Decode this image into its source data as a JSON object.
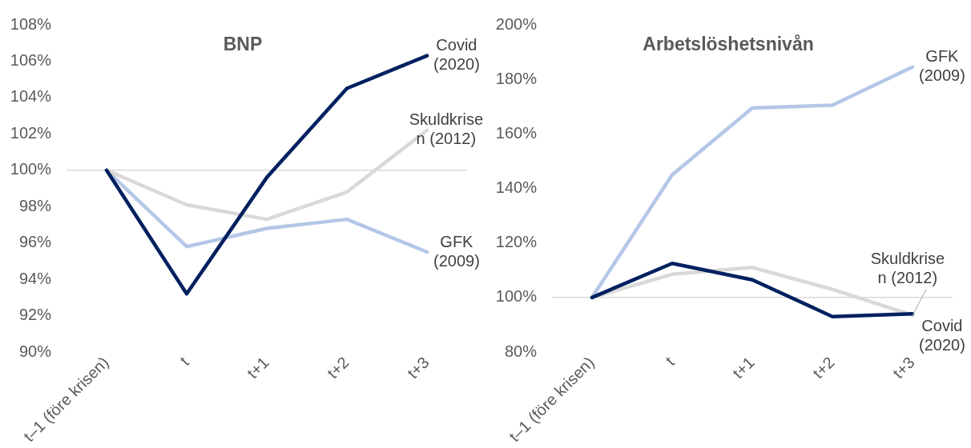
{
  "chart_data": [
    {
      "type": "line",
      "title": "BNP",
      "categories": [
        "t–1 (före krisen)",
        "t",
        "t+1",
        "t+2",
        "t+3"
      ],
      "series": [
        {
          "name": "GFK (2009)",
          "color": "#b4c7e7",
          "values": [
            100,
            95.8,
            96.8,
            97.3,
            95.5
          ]
        },
        {
          "name": "Skuldkrisen (2012)",
          "color": "#d9d9d9",
          "values": [
            100,
            98.1,
            97.3,
            98.8,
            102.2
          ]
        },
        {
          "name": "Covid (2020)",
          "color": "#002060",
          "values": [
            100,
            93.2,
            99.6,
            104.5,
            106.3
          ]
        }
      ],
      "ylim": [
        90,
        108
      ],
      "yticks": [
        {
          "value": 90,
          "label": "90%"
        },
        {
          "value": 92,
          "label": "92%"
        },
        {
          "value": 94,
          "label": "94%"
        },
        {
          "value": 96,
          "label": "96%"
        },
        {
          "value": 98,
          "label": "98%"
        },
        {
          "value": 100,
          "label": "100%"
        },
        {
          "value": 102,
          "label": "102%"
        },
        {
          "value": 104,
          "label": "104%"
        },
        {
          "value": 106,
          "label": "106%"
        },
        {
          "value": 108,
          "label": "108%"
        }
      ],
      "ref_lines": [
        {
          "axis": "y",
          "value": 100,
          "color": "#d9d9d9"
        }
      ],
      "grid": false,
      "legend": false,
      "marker": "none",
      "line_style": "solid"
    },
    {
      "type": "line",
      "title": "Arbetslöshetsnivån",
      "categories": [
        "t–1 (före krisen)",
        "t",
        "t+1",
        "t+2",
        "t+3"
      ],
      "series": [
        {
          "name": "GFK (2009)",
          "color": "#b4c7e7",
          "values": [
            100,
            145,
            169.5,
            170.5,
            184.5
          ]
        },
        {
          "name": "Skuldkrisen (2012)",
          "color": "#d9d9d9",
          "values": [
            100,
            108.5,
            111,
            103,
            93.5
          ]
        },
        {
          "name": "Covid (2020)",
          "color": "#002060",
          "values": [
            100,
            112.5,
            106.5,
            93,
            94
          ]
        }
      ],
      "ylim": [
        80,
        200
      ],
      "yticks": [
        {
          "value": 80,
          "label": "80%"
        },
        {
          "value": 100,
          "label": "100%"
        },
        {
          "value": 120,
          "label": "120%"
        },
        {
          "value": 140,
          "label": "140%"
        },
        {
          "value": 160,
          "label": "160%"
        },
        {
          "value": 180,
          "label": "180%"
        },
        {
          "value": 200,
          "label": "200%"
        }
      ],
      "ref_lines": [
        {
          "axis": "y",
          "value": 100,
          "color": "#d9d9d9"
        }
      ],
      "grid": false,
      "legend": false,
      "marker": "none",
      "line_style": "solid"
    }
  ]
}
